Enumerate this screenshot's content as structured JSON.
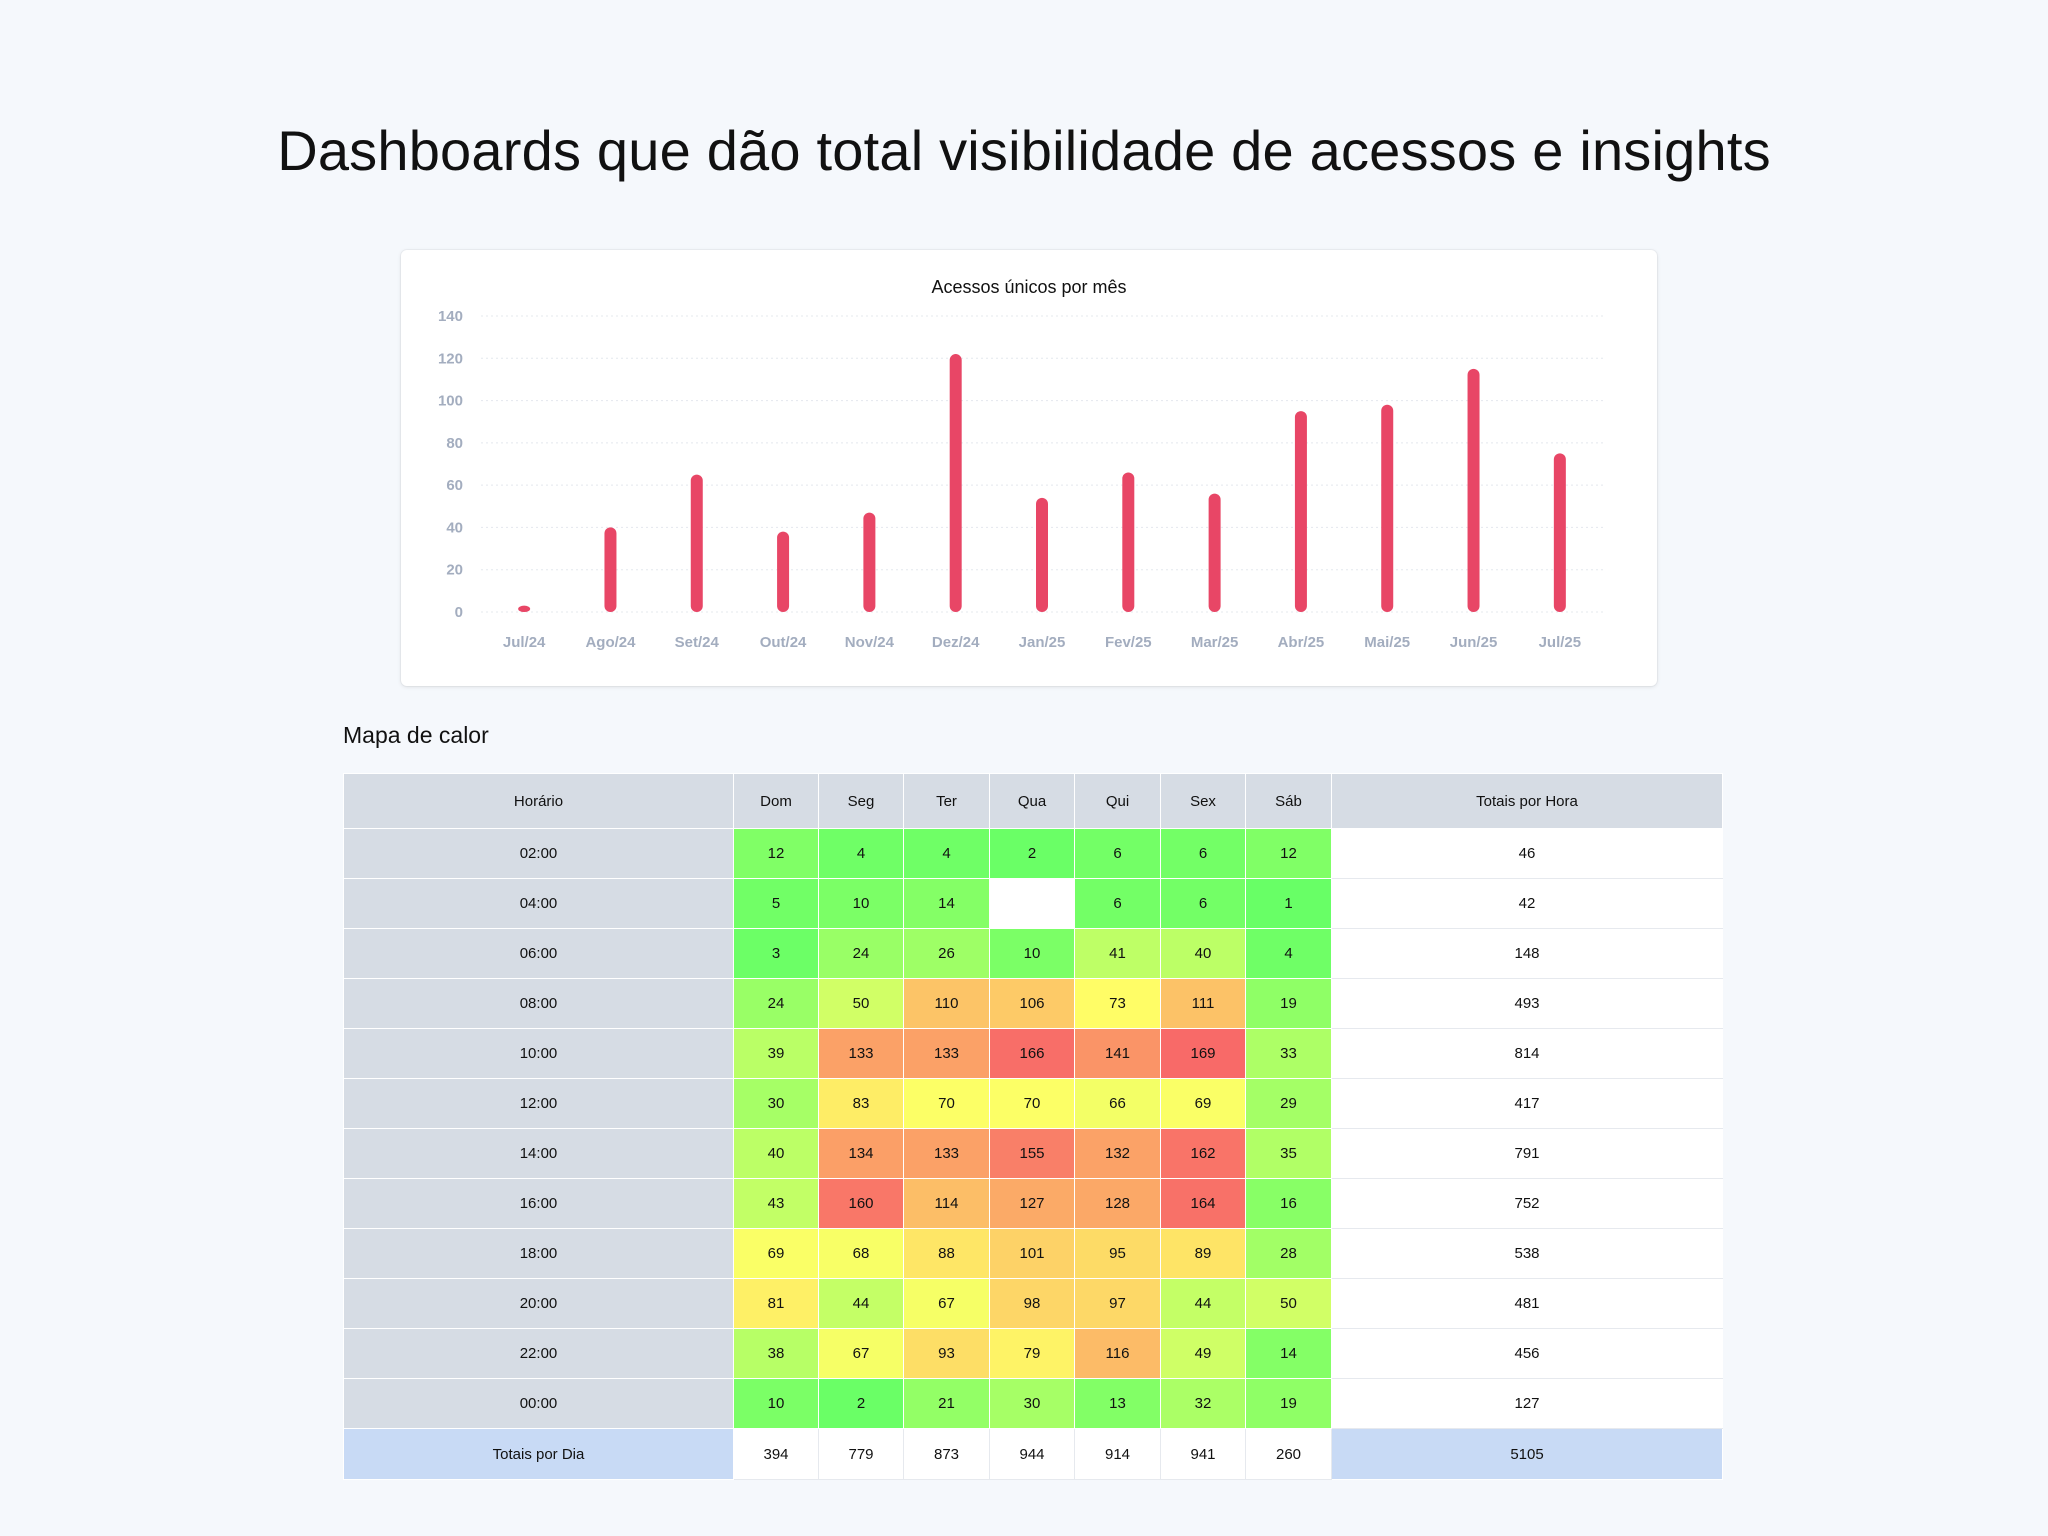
{
  "page": {
    "title": "Dashboards que dão total visibilidade de acessos e insights"
  },
  "chart_data": {
    "type": "bar",
    "title": "Acessos únicos por mês",
    "categories": [
      "Jul/24",
      "Ago/24",
      "Set/24",
      "Out/24",
      "Nov/24",
      "Dez/24",
      "Jan/25",
      "Fev/25",
      "Mar/25",
      "Abr/25",
      "Mai/25",
      "Jun/25",
      "Jul/25"
    ],
    "values": [
      3,
      40,
      65,
      38,
      47,
      122,
      54,
      66,
      56,
      95,
      98,
      115,
      75
    ],
    "yticks": [
      0,
      20,
      40,
      60,
      80,
      100,
      120,
      140
    ],
    "ylim": [
      0,
      140
    ],
    "xlabel": "",
    "ylabel": "",
    "grid": true,
    "colors": {
      "bar": "#e84666",
      "tick": "#a3adbf",
      "grid": "#e4e8ee"
    }
  },
  "heatmap": {
    "title": "Mapa de calor",
    "header": [
      "Horário",
      "Dom",
      "Seg",
      "Ter",
      "Qua",
      "Qui",
      "Sex",
      "Sáb",
      "Totais por Hora"
    ],
    "rows": [
      {
        "hour": "02:00",
        "cells": [
          "12",
          "4",
          "4",
          "2",
          "6",
          "6",
          "12"
        ],
        "total": "46"
      },
      {
        "hour": "04:00",
        "cells": [
          "5",
          "10",
          "14",
          "",
          "6",
          "6",
          "1"
        ],
        "total": "42"
      },
      {
        "hour": "06:00",
        "cells": [
          "3",
          "24",
          "26",
          "10",
          "41",
          "40",
          "4"
        ],
        "total": "148"
      },
      {
        "hour": "08:00",
        "cells": [
          "24",
          "50",
          "110",
          "106",
          "73",
          "111",
          "19"
        ],
        "total": "493"
      },
      {
        "hour": "10:00",
        "cells": [
          "39",
          "133",
          "133",
          "166",
          "141",
          "169",
          "33"
        ],
        "total": "814"
      },
      {
        "hour": "12:00",
        "cells": [
          "30",
          "83",
          "70",
          "70",
          "66",
          "69",
          "29"
        ],
        "total": "417"
      },
      {
        "hour": "14:00",
        "cells": [
          "40",
          "134",
          "133",
          "155",
          "132",
          "162",
          "35"
        ],
        "total": "791"
      },
      {
        "hour": "16:00",
        "cells": [
          "43",
          "160",
          "114",
          "127",
          "128",
          "164",
          "16"
        ],
        "total": "752"
      },
      {
        "hour": "18:00",
        "cells": [
          "69",
          "68",
          "88",
          "101",
          "95",
          "89",
          "28"
        ],
        "total": "538"
      },
      {
        "hour": "20:00",
        "cells": [
          "81",
          "44",
          "67",
          "98",
          "97",
          "44",
          "50"
        ],
        "total": "481"
      },
      {
        "hour": "22:00",
        "cells": [
          "38",
          "67",
          "93",
          "79",
          "116",
          "49",
          "14"
        ],
        "total": "456"
      },
      {
        "hour": "00:00",
        "cells": [
          "10",
          "2",
          "21",
          "30",
          "13",
          "32",
          "19"
        ],
        "total": "127"
      }
    ],
    "footer": {
      "label": "Totais por Dia",
      "cells": [
        "394",
        "779",
        "873",
        "944",
        "914",
        "941",
        "260"
      ],
      "total": "5105"
    },
    "colors": {
      "low": "#66ff66",
      "mid": "#ffff66",
      "high": "#f86868",
      "header_bg": "#d6dce4",
      "footer_bg": "#c8daf5"
    }
  }
}
